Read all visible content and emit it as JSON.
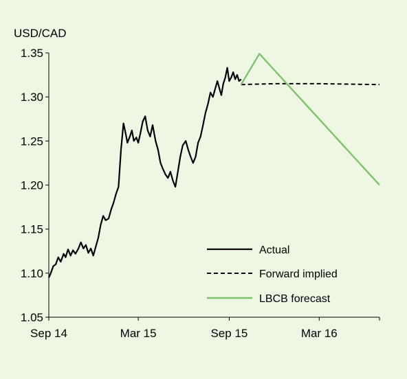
{
  "chart_data": {
    "type": "line",
    "ylabel": "USD/CAD",
    "ylim": [
      1.05,
      1.35
    ],
    "yticks": [
      1.05,
      1.1,
      1.15,
      1.2,
      1.25,
      1.3,
      1.35
    ],
    "ytick_labels": [
      "1.05",
      "1.10",
      "1.15",
      "1.20",
      "1.25",
      "1.30",
      "1.35"
    ],
    "x_range": [
      "2014-09",
      "2016-07"
    ],
    "xticks": [
      "2014-09",
      "2015-03",
      "2015-09",
      "2016-03"
    ],
    "xtick_labels": [
      "Sep 14",
      "Mar 15",
      "Sep 15",
      "Mar 16"
    ],
    "grid": false,
    "legend_position": "bottom-right",
    "series": [
      {
        "name": "Actual",
        "style": "solid",
        "color": "#000000",
        "points": [
          [
            "2014-09-01",
            1.095
          ],
          [
            "2014-09-05",
            1.1
          ],
          [
            "2014-09-10",
            1.108
          ],
          [
            "2014-09-15",
            1.11
          ],
          [
            "2014-09-20",
            1.118
          ],
          [
            "2014-09-25",
            1.113
          ],
          [
            "2014-10-01",
            1.122
          ],
          [
            "2014-10-05",
            1.118
          ],
          [
            "2014-10-10",
            1.127
          ],
          [
            "2014-10-15",
            1.12
          ],
          [
            "2014-10-20",
            1.126
          ],
          [
            "2014-10-25",
            1.122
          ],
          [
            "2014-10-31",
            1.128
          ],
          [
            "2014-11-05",
            1.135
          ],
          [
            "2014-11-10",
            1.128
          ],
          [
            "2014-11-15",
            1.132
          ],
          [
            "2014-11-20",
            1.123
          ],
          [
            "2014-11-25",
            1.128
          ],
          [
            "2014-11-30",
            1.12
          ],
          [
            "2014-12-05",
            1.13
          ],
          [
            "2014-12-10",
            1.14
          ],
          [
            "2014-12-15",
            1.155
          ],
          [
            "2014-12-20",
            1.165
          ],
          [
            "2014-12-25",
            1.16
          ],
          [
            "2014-12-31",
            1.162
          ],
          [
            "2015-01-05",
            1.172
          ],
          [
            "2015-01-10",
            1.18
          ],
          [
            "2015-01-15",
            1.19
          ],
          [
            "2015-01-20",
            1.198
          ],
          [
            "2015-01-25",
            1.24
          ],
          [
            "2015-01-30",
            1.27
          ],
          [
            "2015-02-03",
            1.26
          ],
          [
            "2015-02-07",
            1.248
          ],
          [
            "2015-02-12",
            1.255
          ],
          [
            "2015-02-16",
            1.262
          ],
          [
            "2015-02-20",
            1.25
          ],
          [
            "2015-02-25",
            1.254
          ],
          [
            "2015-03-01",
            1.248
          ],
          [
            "2015-03-05",
            1.258
          ],
          [
            "2015-03-10",
            1.272
          ],
          [
            "2015-03-15",
            1.278
          ],
          [
            "2015-03-20",
            1.262
          ],
          [
            "2015-03-25",
            1.255
          ],
          [
            "2015-03-30",
            1.268
          ],
          [
            "2015-04-05",
            1.25
          ],
          [
            "2015-04-10",
            1.24
          ],
          [
            "2015-04-15",
            1.225
          ],
          [
            "2015-04-20",
            1.218
          ],
          [
            "2015-04-25",
            1.212
          ],
          [
            "2015-04-30",
            1.208
          ],
          [
            "2015-05-05",
            1.215
          ],
          [
            "2015-05-10",
            1.205
          ],
          [
            "2015-05-15",
            1.198
          ],
          [
            "2015-05-20",
            1.215
          ],
          [
            "2015-05-25",
            1.232
          ],
          [
            "2015-05-30",
            1.245
          ],
          [
            "2015-06-05",
            1.25
          ],
          [
            "2015-06-10",
            1.24
          ],
          [
            "2015-06-15",
            1.232
          ],
          [
            "2015-06-20",
            1.225
          ],
          [
            "2015-06-25",
            1.232
          ],
          [
            "2015-06-30",
            1.248
          ],
          [
            "2015-07-05",
            1.255
          ],
          [
            "2015-07-10",
            1.268
          ],
          [
            "2015-07-15",
            1.282
          ],
          [
            "2015-07-20",
            1.292
          ],
          [
            "2015-07-25",
            1.305
          ],
          [
            "2015-07-30",
            1.3
          ],
          [
            "2015-08-04",
            1.31
          ],
          [
            "2015-08-08",
            1.318
          ],
          [
            "2015-08-12",
            1.31
          ],
          [
            "2015-08-16",
            1.302
          ],
          [
            "2015-08-20",
            1.315
          ],
          [
            "2015-08-24",
            1.322
          ],
          [
            "2015-08-28",
            1.333
          ],
          [
            "2015-09-01",
            1.318
          ],
          [
            "2015-09-05",
            1.322
          ],
          [
            "2015-09-09",
            1.328
          ],
          [
            "2015-09-13",
            1.32
          ],
          [
            "2015-09-17",
            1.325
          ],
          [
            "2015-09-21",
            1.318
          ],
          [
            "2015-09-25",
            1.32
          ]
        ]
      },
      {
        "name": "Forward implied",
        "style": "dashed",
        "color": "#000000",
        "points": [
          [
            "2015-09-25",
            1.314
          ],
          [
            "2015-12-01",
            1.315
          ],
          [
            "2016-03-01",
            1.315
          ],
          [
            "2016-07-01",
            1.314
          ]
        ]
      },
      {
        "name": "LBCB forecast",
        "style": "solid",
        "color": "#7dc36b",
        "points": [
          [
            "2015-09-25",
            1.314
          ],
          [
            "2015-11-01",
            1.349
          ],
          [
            "2016-07-01",
            1.2
          ]
        ]
      }
    ]
  }
}
